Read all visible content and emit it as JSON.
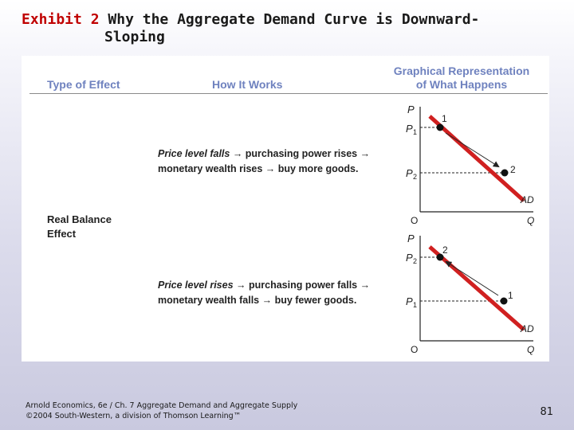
{
  "title": {
    "exhibit": "Exhibit 2",
    "line1": "Why the Aggregate Demand Curve is Downward-",
    "line2": "Sloping"
  },
  "table": {
    "headers": {
      "type": "Type of Effect",
      "how": "How It Works",
      "graph_line1": "Graphical Representation",
      "graph_line2": "of What Happens"
    },
    "effect_line1": "Real Balance",
    "effect_line2": "Effect",
    "rows": [
      {
        "how_italic": "Price level falls",
        "how_rest1": " → purchasing power rises →",
        "how_line2": "monetary wealth rises → buy more goods."
      },
      {
        "how_italic": "Price level rises",
        "how_rest1": " → purchasing power falls →",
        "how_line2": "monetary wealth falls → buy fewer goods."
      }
    ],
    "graphs": [
      {
        "y_axis": "P",
        "x_axis": "Q",
        "origin": "O",
        "curve": "AD",
        "upper_price": "P",
        "upper_sub": "1",
        "lower_price": "P",
        "lower_sub": "2",
        "upper_point": "1",
        "lower_point": "2",
        "curve_color": "#d02020"
      },
      {
        "y_axis": "P",
        "x_axis": "Q",
        "origin": "O",
        "curve": "AD",
        "upper_price": "P",
        "upper_sub": "2",
        "lower_price": "P",
        "lower_sub": "1",
        "upper_point": "2",
        "lower_point": "1",
        "curve_color": "#d02020"
      }
    ]
  },
  "footer": {
    "line1": "Arnold Economics, 6e / Ch. 7 Aggregate Demand and Aggregate Supply",
    "line2": "©2004 South-Western, a division of Thomson Learning™",
    "page": "81"
  }
}
